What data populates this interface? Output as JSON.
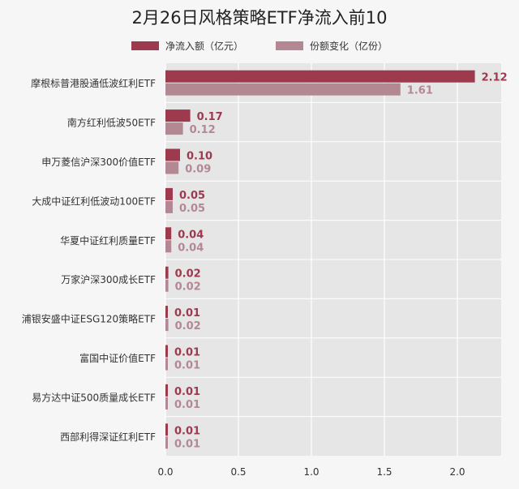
{
  "chart_data": {
    "type": "bar",
    "orientation": "horizontal",
    "title": "2月26日风格策略ETF净流入前10",
    "categories": [
      "摩根标普港股通低波红利ETF",
      "南方红利低波50ETF",
      "申万菱信沪深300价值ETF",
      "大成中证红利低波动100ETF",
      "华夏中证红利质量ETF",
      "万家沪深300成长ETF",
      "浦银安盛中证ESG120策略ETF",
      "富国中证价值ETF",
      "易方达中证500质量成长ETF",
      "西部利得深证红利ETF"
    ],
    "series": [
      {
        "name": "净流入额（亿元）",
        "color": "#9e3a4e",
        "values": [
          2.12,
          0.17,
          0.1,
          0.05,
          0.04,
          0.02,
          0.01,
          0.01,
          0.01,
          0.01
        ]
      },
      {
        "name": "份额变化（亿份）",
        "color": "#b48892",
        "values": [
          1.61,
          0.12,
          0.09,
          0.05,
          0.04,
          0.02,
          0.02,
          0.01,
          0.01,
          0.01
        ]
      }
    ],
    "data_labels": [
      [
        "2.12",
        "0.17",
        "0.10",
        "0.05",
        "0.04",
        "0.02",
        "0.01",
        "0.01",
        "0.01",
        "0.01"
      ],
      [
        "1.61",
        "0.12",
        "0.09",
        "0.05",
        "0.04",
        "0.02",
        "0.02",
        "0.01",
        "0.01",
        "0.01"
      ]
    ],
    "xlim": [
      0,
      2.3
    ],
    "xticks": [
      0,
      0.5,
      1,
      1.5,
      2
    ],
    "xtick_labels": [
      "0.0",
      "0.5",
      "1.0",
      "1.5",
      "2.0"
    ],
    "grid": true,
    "legend_position": "top-center"
  }
}
